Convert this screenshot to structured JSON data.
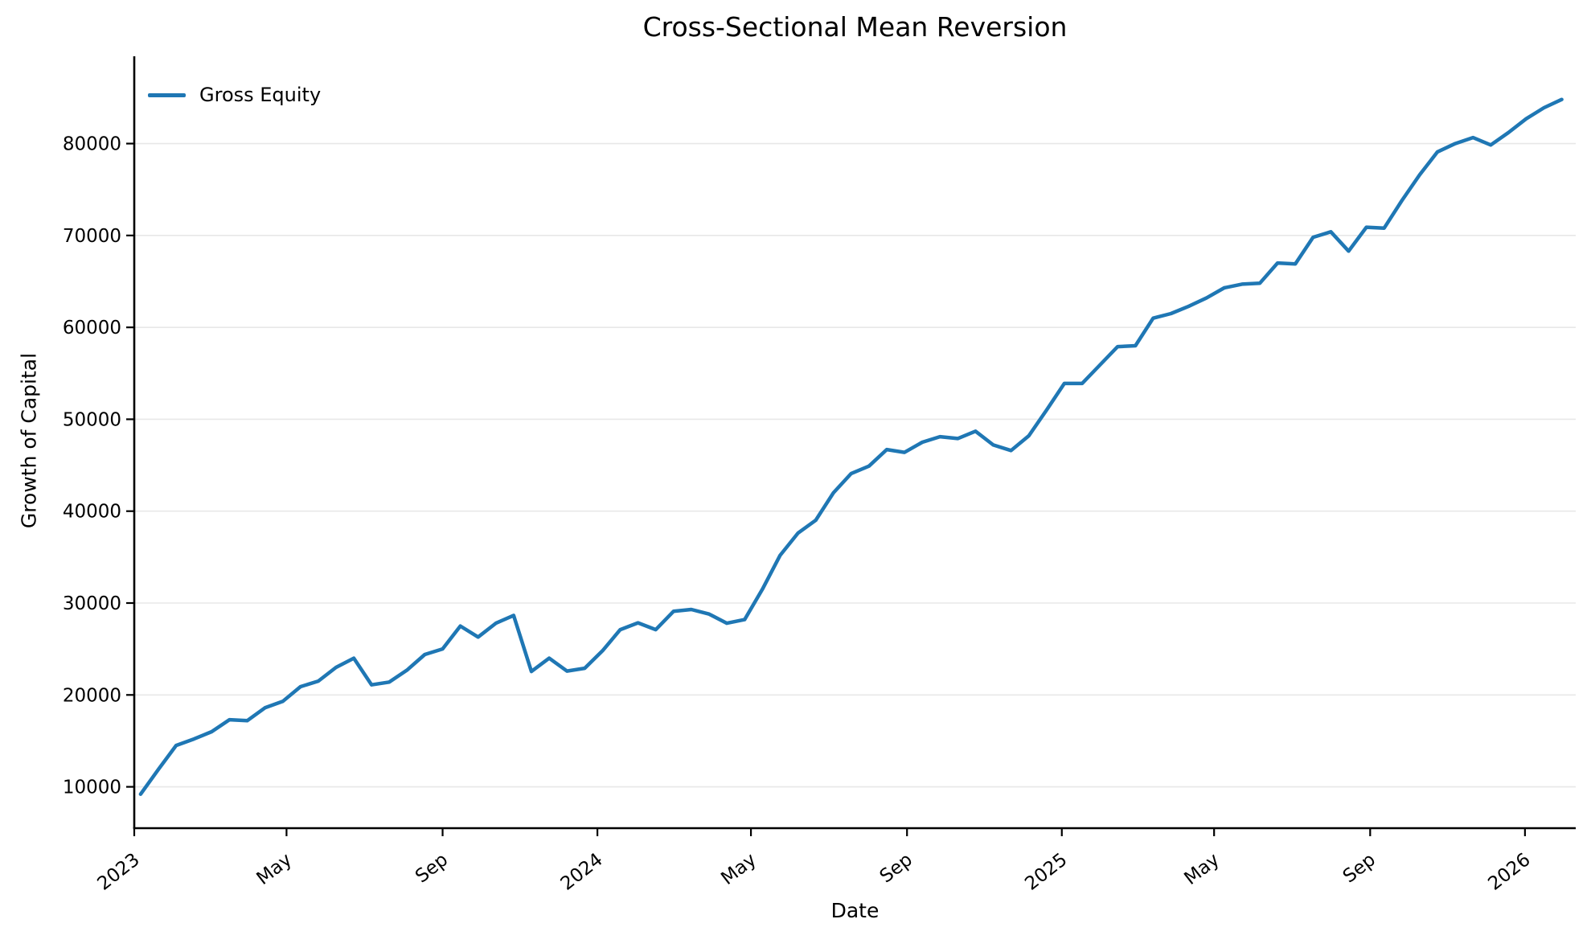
{
  "figure": {
    "title": "Cross-Sectional Mean Reversion",
    "xlabel": "Date",
    "ylabel": "Growth of Capital"
  },
  "chart_data": {
    "type": "line",
    "title": "Cross-Sectional Mean Reversion",
    "xlabel": "Date",
    "ylabel": "Growth of Capital",
    "grid": "horizontal-only",
    "legend_position": "upper-left",
    "background": "#ffffff",
    "grid_color": "#e8e8e8",
    "spine_color": "#000000",
    "x_tick_labels": [
      "2023",
      "May",
      "Sep",
      "2024",
      "May",
      "Sep",
      "2025",
      "May",
      "Sep",
      "2026"
    ],
    "x_tick_dates": [
      "2023-01-01",
      "2023-05-01",
      "2023-09-01",
      "2024-01-01",
      "2024-05-01",
      "2024-09-01",
      "2025-01-01",
      "2025-05-01",
      "2025-09-01",
      "2026-01-01"
    ],
    "y_ticks": [
      10000,
      20000,
      30000,
      40000,
      50000,
      60000,
      70000,
      80000
    ],
    "ylim": [
      5500,
      89500
    ],
    "xlim": [
      "2023-01-01",
      "2026-02-10"
    ],
    "series": [
      {
        "name": "Gross Equity",
        "color": "#1f77b4",
        "line_width": 4.5,
        "dates": [
          "2023-01-06",
          "2023-01-20",
          "2023-02-03",
          "2023-02-17",
          "2023-03-03",
          "2023-03-17",
          "2023-03-31",
          "2023-04-14",
          "2023-04-28",
          "2023-05-12",
          "2023-05-26",
          "2023-06-09",
          "2023-06-23",
          "2023-07-07",
          "2023-07-21",
          "2023-08-04",
          "2023-08-18",
          "2023-09-01",
          "2023-09-15",
          "2023-09-29",
          "2023-10-13",
          "2023-10-27",
          "2023-11-10",
          "2023-11-24",
          "2023-12-08",
          "2023-12-22",
          "2024-01-05",
          "2024-01-19",
          "2024-02-02",
          "2024-02-16",
          "2024-03-01",
          "2024-03-15",
          "2024-03-29",
          "2024-04-12",
          "2024-04-26",
          "2024-05-10",
          "2024-05-24",
          "2024-06-07",
          "2024-06-21",
          "2024-07-05",
          "2024-07-19",
          "2024-08-02",
          "2024-08-16",
          "2024-08-30",
          "2024-09-13",
          "2024-09-27",
          "2024-10-11",
          "2024-10-25",
          "2024-11-08",
          "2024-11-22",
          "2024-12-06",
          "2024-12-20",
          "2025-01-03",
          "2025-01-17",
          "2025-01-31",
          "2025-02-14",
          "2025-02-28",
          "2025-03-14",
          "2025-03-28",
          "2025-04-11",
          "2025-04-25",
          "2025-05-09",
          "2025-05-23",
          "2025-06-06",
          "2025-06-20",
          "2025-07-04",
          "2025-07-18",
          "2025-08-01",
          "2025-08-15",
          "2025-08-29",
          "2025-09-12",
          "2025-09-26",
          "2025-10-10",
          "2025-10-24",
          "2025-11-07",
          "2025-11-21",
          "2025-12-05",
          "2025-12-19",
          "2026-01-02",
          "2026-01-16",
          "2026-01-30"
        ],
        "values": [
          9200,
          11900,
          14500,
          15200,
          16000,
          17300,
          17200,
          18600,
          19300,
          20900,
          21500,
          23000,
          24000,
          21100,
          21400,
          22700,
          24400,
          25000,
          27500,
          26300,
          27800,
          28650,
          22550,
          24000,
          22600,
          22900,
          24800,
          27100,
          27850,
          27100,
          29100,
          29300,
          28800,
          27800,
          28200,
          31500,
          35200,
          37600,
          39000,
          42000,
          44100,
          44900,
          46700,
          46400,
          47500,
          48100,
          47900,
          48700,
          47200,
          46600,
          48200,
          51000,
          53900,
          53900,
          55900,
          57900,
          58000,
          61000,
          61500,
          62300,
          63200,
          64300,
          64700,
          64800,
          67000,
          66900,
          69800,
          70400,
          68300,
          70900,
          70800,
          73800,
          76600,
          79100,
          80000,
          80650,
          79850,
          81200,
          82700,
          83900,
          84800
        ]
      }
    ]
  }
}
